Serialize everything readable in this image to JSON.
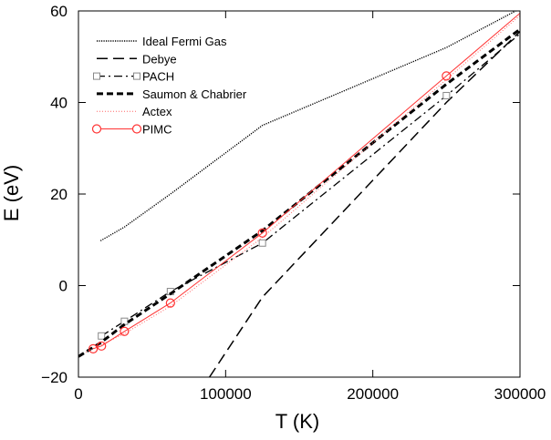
{
  "chart_data": {
    "type": "line",
    "xlabel": "T (K)",
    "ylabel": "E (eV)",
    "xlim": [
      0,
      300000
    ],
    "ylim": [
      -20,
      60
    ],
    "xticks": [
      0,
      100000,
      200000,
      300000
    ],
    "yticks": [
      -20,
      0,
      20,
      40,
      60
    ],
    "xtick_labels": [
      "0",
      "100000",
      "200000",
      "300000"
    ],
    "ytick_labels": [
      "−20",
      "0",
      "20",
      "40",
      "60"
    ],
    "grid": false,
    "legend_position": "top-left",
    "series": [
      {
        "name": "Ideal Fermi Gas",
        "color": "#000000",
        "style": "dotted-thin",
        "marker": "none",
        "x": [
          15000,
          31250,
          62500,
          125000,
          250000,
          300000
        ],
        "y": [
          9.8,
          12.8,
          20.0,
          35.0,
          52.0,
          60.5
        ]
      },
      {
        "name": "Debye",
        "color": "#000000",
        "style": "long-dash",
        "marker": "none",
        "x": [
          89000,
          125000,
          250000,
          300000
        ],
        "y": [
          -20,
          -2.5,
          40.0,
          55.5
        ]
      },
      {
        "name": "PACH",
        "color": "#000000",
        "style": "dash-dot",
        "marker": "square",
        "x": [
          15625,
          31250,
          62500,
          125000,
          250000,
          300000
        ],
        "y": [
          -11.0,
          -7.8,
          -1.3,
          9.3,
          41.5,
          55.0
        ]
      },
      {
        "name": "Saumon & Chabrier",
        "color": "#000000",
        "style": "bold-dash",
        "marker": "none",
        "x": [
          0,
          15000,
          31250,
          62500,
          125000,
          250000,
          300000
        ],
        "y": [
          -15.5,
          -12.5,
          -8.5,
          -1.8,
          12.0,
          44.0,
          56.0
        ]
      },
      {
        "name": "Actex",
        "color": "#ff6666",
        "style": "dotted-fine",
        "marker": "none",
        "x": [
          5000,
          15000,
          31250,
          62500,
          125000,
          250000,
          300000
        ],
        "y": [
          -14.5,
          -13.0,
          -10.5,
          -4.5,
          10.5,
          45.0,
          59.0
        ]
      },
      {
        "name": "PIMC",
        "color": "#ff3333",
        "style": "solid-thin",
        "marker": "circle",
        "x": [
          10000,
          15625,
          31250,
          62500,
          125000,
          250000,
          300000
        ],
        "y": [
          -13.8,
          -13.2,
          -10.0,
          -3.8,
          11.5,
          45.8,
          59.5
        ],
        "marker_points": [
          0,
          1,
          2,
          3,
          4,
          5
        ]
      }
    ]
  }
}
